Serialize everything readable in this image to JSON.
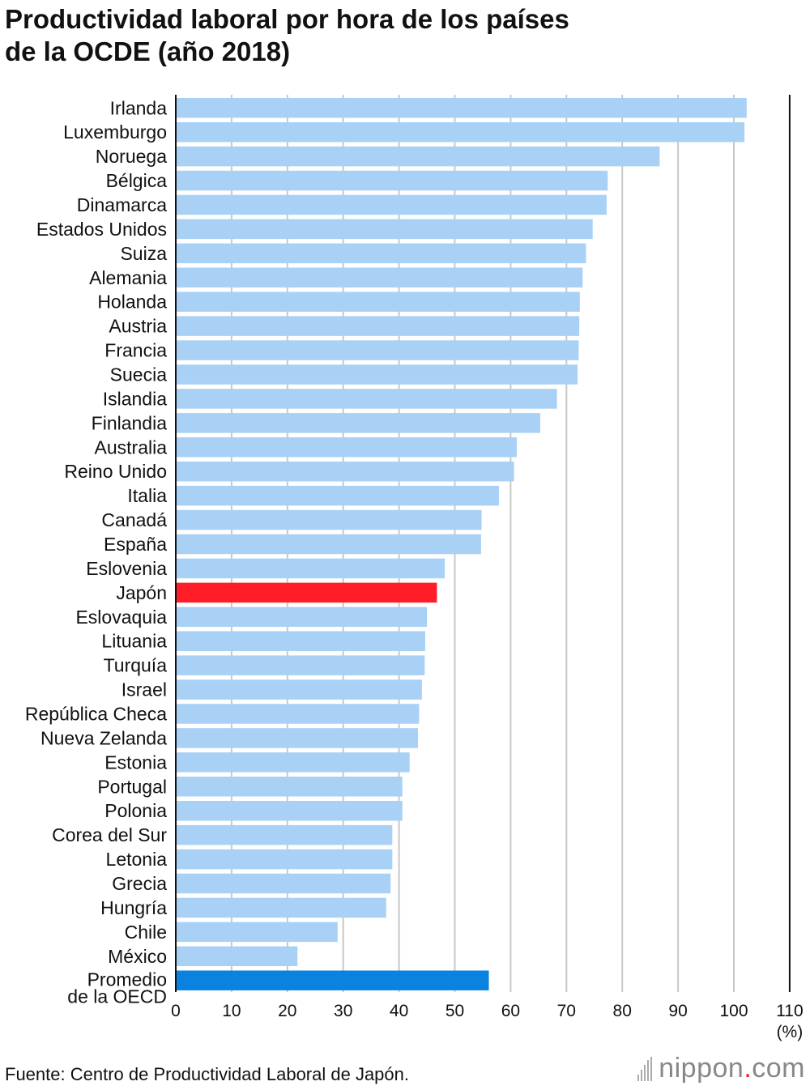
{
  "title_line1": "Productividad laboral por hora de los países",
  "title_line2": "de la OCDE (año 2018)",
  "source": "Fuente: Centro de Productividad Laboral de Japón.",
  "logo": {
    "part1": "nippon",
    "dot": ".",
    "part2": "com"
  },
  "colors": {
    "default_bar": "#a8d1f5",
    "highlight_bar": "#ff1e27",
    "average_bar": "#0a83e0",
    "grid": "#c8c8c8",
    "axis": "#111111"
  },
  "chart_data": {
    "type": "bar",
    "orientation": "horizontal",
    "title": "Productividad laboral por hora de los países de la OCDE (año 2018)",
    "xlabel": "(%)",
    "xlim": [
      0,
      110
    ],
    "xticks": [
      0,
      10,
      20,
      30,
      40,
      50,
      60,
      70,
      80,
      90,
      100,
      110
    ],
    "grid": true,
    "categories": [
      "Irlanda",
      "Luxemburgo",
      "Noruega",
      "Bélgica",
      "Dinamarca",
      "Estados Unidos",
      "Suiza",
      "Alemania",
      "Holanda",
      "Austria",
      "Francia",
      "Suecia",
      "Islandia",
      "Finlandia",
      "Australia",
      "Reino Unido",
      "Italia",
      "Canadá",
      "España",
      "Eslovenia",
      "Japón",
      "Eslovaquia",
      "Lituania",
      "Turquía",
      "Israel",
      "República Checa",
      "Nueva Zelanda",
      "Estonia",
      "Portugal",
      "Polonia",
      "Corea del Sur",
      "Letonia",
      "Grecia",
      "Hungría",
      "Chile",
      "México",
      "Promedio\nde la OECD"
    ],
    "values": [
      102.3,
      101.9,
      86.7,
      77.4,
      77.2,
      74.7,
      73.5,
      72.9,
      72.4,
      72.3,
      72.2,
      72.0,
      68.3,
      65.3,
      61.1,
      60.6,
      57.9,
      54.8,
      54.7,
      48.2,
      46.8,
      45.0,
      44.7,
      44.6,
      44.1,
      43.6,
      43.4,
      41.9,
      40.6,
      40.6,
      38.8,
      38.8,
      38.5,
      37.7,
      29.0,
      21.8,
      56.1
    ],
    "highlight": {
      "Japón": "highlight",
      "Promedio\nde la OECD": "average"
    }
  }
}
